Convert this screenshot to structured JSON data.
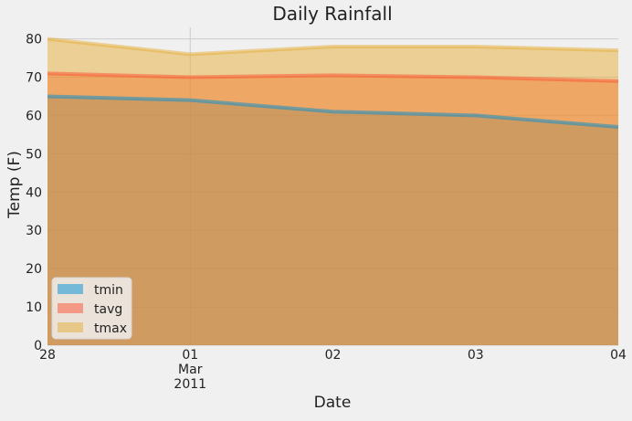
{
  "chart_data": {
    "type": "area",
    "title": "Daily Rainfall",
    "xlabel": "Date",
    "ylabel": "Temp (F)",
    "x": [
      "2011-02-28",
      "2011-03-01",
      "2011-03-02",
      "2011-03-03",
      "2011-03-04"
    ],
    "x_tick_labels": [
      {
        "main": "28",
        "sub": []
      },
      {
        "main": "01",
        "sub": [
          "Mar",
          "2011"
        ]
      },
      {
        "main": "02",
        "sub": []
      },
      {
        "main": "03",
        "sub": []
      },
      {
        "main": "04",
        "sub": []
      }
    ],
    "ylim": [
      0,
      83
    ],
    "y_ticks": [
      0,
      10,
      20,
      30,
      40,
      50,
      60,
      70,
      80
    ],
    "stacked": false,
    "grid": true,
    "legend_position": "lower-left",
    "series": [
      {
        "name": "tmin",
        "values": [
          65,
          64,
          61,
          60,
          57
        ],
        "color": "#008fd5"
      },
      {
        "name": "tavg",
        "values": [
          71,
          70,
          70.5,
          70,
          69
        ],
        "color": "#fc4f30"
      },
      {
        "name": "tmax",
        "values": [
          80,
          76,
          78,
          78,
          77
        ],
        "color": "#e5ae38"
      }
    ]
  }
}
